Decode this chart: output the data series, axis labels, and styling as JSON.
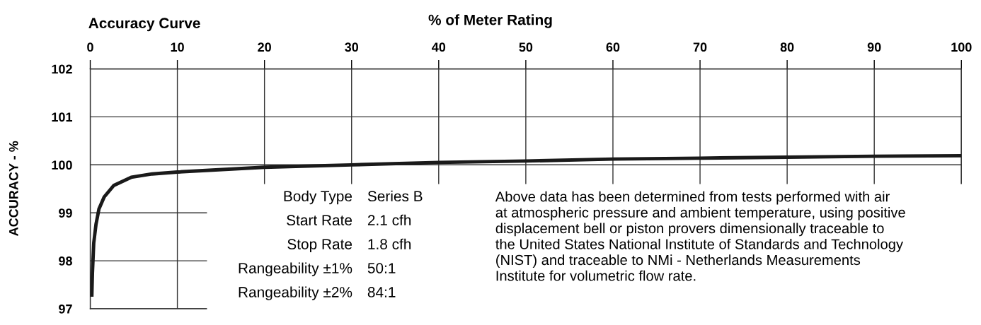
{
  "chart_data": {
    "type": "line",
    "title": "Accuracy Curve",
    "xlabel": "% of Meter Rating",
    "ylabel": "ACCURACY - %",
    "series": [
      {
        "color": "#1a1a1a",
        "x": [
          0.18,
          0.25,
          0.4,
          0.66,
          1.0,
          1.6,
          2.7,
          4.7,
          7.1,
          10,
          20,
          30,
          40,
          50,
          60,
          70,
          80,
          90,
          100
        ],
        "values": [
          97.25,
          97.74,
          98.37,
          98.76,
          99.08,
          99.33,
          99.57,
          99.74,
          99.81,
          99.85,
          99.95,
          100.0,
          100.05,
          100.08,
          100.12,
          100.14,
          100.16,
          100.18,
          100.19
        ]
      }
    ],
    "xlim": [
      0,
      100
    ],
    "xticks": [
      0,
      10,
      20,
      30,
      40,
      50,
      60,
      70,
      80,
      90,
      100
    ],
    "ylim": [
      97,
      102
    ],
    "yticks": [
      97,
      98,
      99,
      100,
      101,
      102
    ],
    "grid": true,
    "legend": false,
    "marker": "none",
    "line_style": "solid",
    "annotations": [
      "Body Type",
      "Series B",
      "Start Rate",
      "2.1 cfh",
      "Stop Rate",
      "1.8 cfh",
      "Rangeability ±1%",
      "50:1",
      "Rangeability ±2%",
      "84:1",
      "Above data has been determined from tests performed with air\nat atmospheric pressure and ambient temperature, using positive\ndisplacement bell or piston provers dimensionally traceable to\nthe United States National Institute of Standards and Technology\n(NIST) and traceable to NMi - Netherlands Measurements\nInstitute for volumetric flow rate."
    ]
  }
}
